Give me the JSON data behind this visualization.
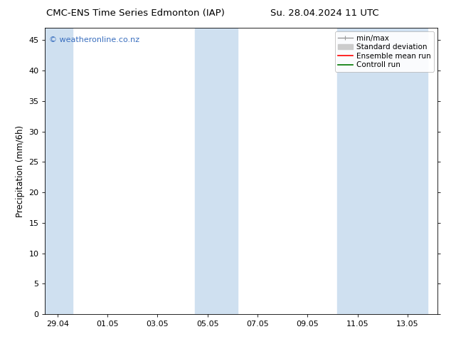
{
  "title_left": "CMC-ENS Time Series Edmonton (IAP)",
  "title_right": "Su. 28.04.2024 11 UTC",
  "ylabel": "Precipitation (mm/6h)",
  "watermark": "© weatheronline.co.nz",
  "x_tick_labels": [
    "29.04",
    "01.05",
    "03.05",
    "05.05",
    "07.05",
    "09.05",
    "11.05",
    "13.05"
  ],
  "x_tick_positions": [
    0,
    2,
    4,
    6,
    8,
    10,
    12,
    14
  ],
  "ylim": [
    0,
    47
  ],
  "yticks": [
    0,
    5,
    10,
    15,
    20,
    25,
    30,
    35,
    40,
    45
  ],
  "xlim": [
    -0.5,
    15.2
  ],
  "shade_bands": [
    {
      "x_start": -0.5,
      "x_end": 0.6
    },
    {
      "x_start": 5.5,
      "x_end": 7.2
    },
    {
      "x_start": 11.2,
      "x_end": 14.8
    }
  ],
  "shade_color": "#cfe0f0",
  "background_color": "#ffffff",
  "legend_entries": [
    {
      "label": "min/max",
      "color": "#999999",
      "lw": 1.0,
      "style": "line_with_cap"
    },
    {
      "label": "Standard deviation",
      "color": "#cccccc",
      "lw": 5,
      "style": "thick_line"
    },
    {
      "label": "Ensemble mean run",
      "color": "#ff0000",
      "lw": 1.2,
      "style": "line"
    },
    {
      "label": "Controll run",
      "color": "#007700",
      "lw": 1.2,
      "style": "line"
    }
  ],
  "title_fontsize": 9.5,
  "tick_fontsize": 8,
  "ylabel_fontsize": 8.5,
  "legend_fontsize": 7.5,
  "watermark_color": "#3a6fbf",
  "watermark_fontsize": 8
}
